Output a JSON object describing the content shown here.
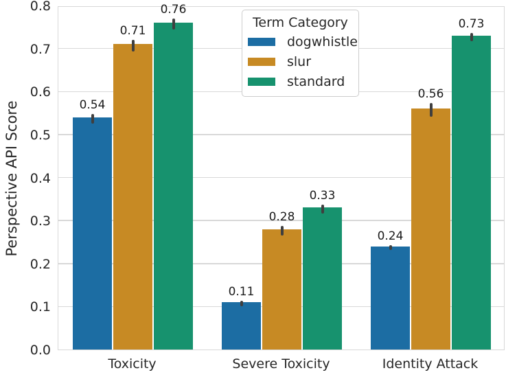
{
  "chart_data": {
    "type": "bar",
    "title": "",
    "xlabel": "",
    "ylabel": "Perspective API Score",
    "ylim": [
      0.0,
      0.8
    ],
    "yticks": [
      0.0,
      0.1,
      0.2,
      0.3,
      0.4,
      0.5,
      0.6,
      0.7,
      0.8
    ],
    "ytick_labels": [
      "0.0",
      "0.1",
      "0.2",
      "0.3",
      "0.4",
      "0.5",
      "0.6",
      "0.7",
      "0.8"
    ],
    "categories": [
      "Toxicity",
      "Severe Toxicity",
      "Identity Attack"
    ],
    "grid": "horizontal",
    "grid_color": "#d8d8d8",
    "legend": {
      "title": "Term Category",
      "position": "upper-center-inside"
    },
    "error_bar_color": "#3f3f3f",
    "series": [
      {
        "name": "dogwhistle",
        "color": "#1c6da3",
        "values": [
          0.54,
          0.11,
          0.24
        ],
        "labels": [
          "0.54",
          "0.11",
          "0.24"
        ],
        "errors": [
          0.011,
          0.006,
          0.006
        ]
      },
      {
        "name": "slur",
        "color": "#c78a24",
        "values": [
          0.71,
          0.28,
          0.56
        ],
        "labels": [
          "0.71",
          "0.28",
          "0.56"
        ],
        "errors": [
          0.013,
          0.011,
          0.016
        ]
      },
      {
        "name": "standard",
        "color": "#17926e",
        "values": [
          0.76,
          0.33,
          0.73
        ],
        "labels": [
          "0.76",
          "0.33",
          "0.73"
        ],
        "errors": [
          0.013,
          0.01,
          0.01
        ]
      }
    ]
  }
}
